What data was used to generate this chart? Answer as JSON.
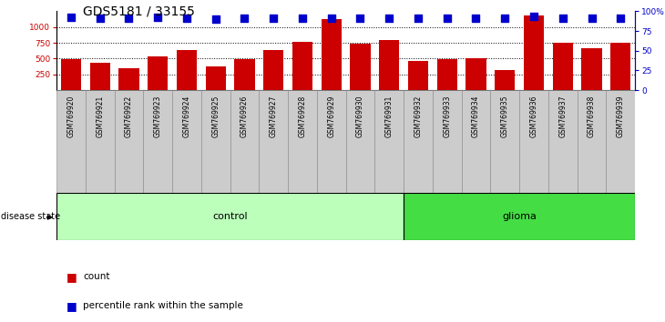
{
  "title": "GDS5181 / 33155",
  "samples": [
    "GSM769920",
    "GSM769921",
    "GSM769922",
    "GSM769923",
    "GSM769924",
    "GSM769925",
    "GSM769926",
    "GSM769927",
    "GSM769928",
    "GSM769929",
    "GSM769930",
    "GSM769931",
    "GSM769932",
    "GSM769933",
    "GSM769934",
    "GSM769935",
    "GSM769936",
    "GSM769937",
    "GSM769938",
    "GSM769939"
  ],
  "counts": [
    490,
    430,
    350,
    540,
    630,
    380,
    490,
    630,
    760,
    1120,
    730,
    800,
    470,
    490,
    505,
    320,
    1190,
    750,
    670,
    750
  ],
  "percentile_ranks": [
    92,
    91,
    91,
    92,
    91,
    90,
    91,
    91,
    91,
    91,
    91,
    91,
    91,
    91,
    91,
    91,
    93,
    91,
    91,
    91
  ],
  "control_count": 12,
  "glioma_count": 8,
  "ylim_left": [
    0,
    1250
  ],
  "ylim_right": [
    0,
    100
  ],
  "yticks_left": [
    250,
    500,
    750,
    1000
  ],
  "yticks_right": [
    0,
    25,
    50,
    75,
    100
  ],
  "bar_color": "#CC0000",
  "dot_color": "#0000CC",
  "control_color": "#BBFFBB",
  "glioma_color": "#44DD44",
  "sample_bg_color": "#CCCCCC",
  "title_fontsize": 10,
  "tick_fontsize": 6.5,
  "dot_marker_size": 30
}
